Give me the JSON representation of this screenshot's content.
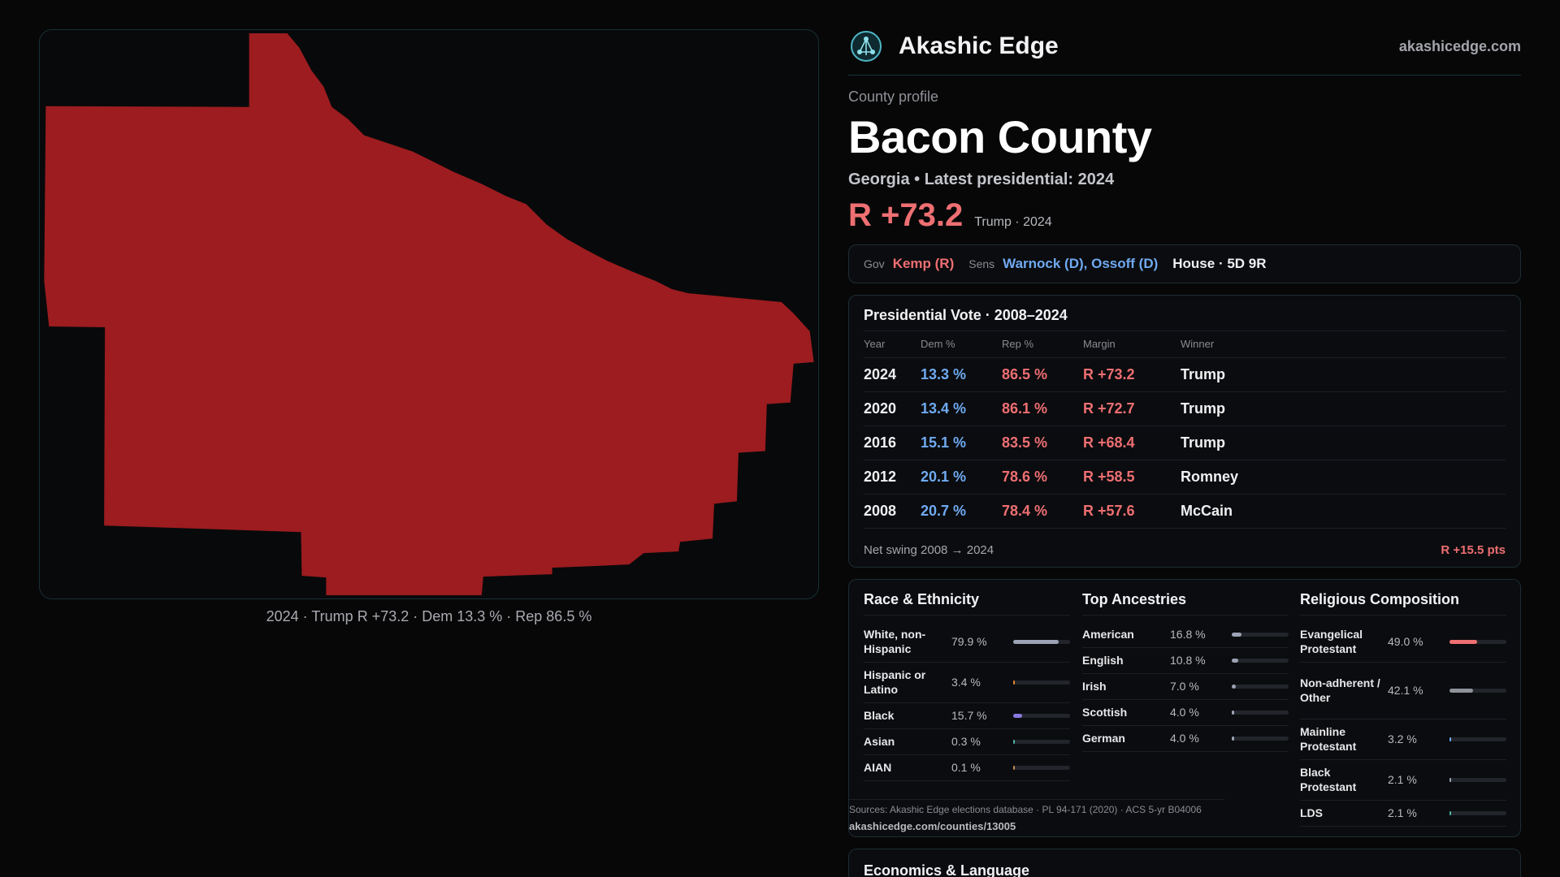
{
  "map": {
    "county_fill": "#9c1c1f",
    "caption": "2024 · Trump R +73.2 · Dem 13.3 % · Rep 86.5 %"
  },
  "brand": {
    "name": "Akashic Edge",
    "url": "akashicedge.com",
    "logo_icon": "radial-network-icon"
  },
  "header": {
    "eyebrow": "County profile",
    "county": "Bacon County",
    "subhead": "Georgia • Latest presidential: 2024",
    "margin": "R +73.2",
    "margin_sub": "Trump · 2024"
  },
  "officials": {
    "gov_label": "Gov",
    "gov": "Kemp (R)",
    "sens_label": "Sens",
    "sens": "Warnock (D), Ossoff (D)",
    "house": "House · 5D 9R"
  },
  "presidential": {
    "title": "Presidential Vote · 2008–2024",
    "columns": [
      "Year",
      "Dem %",
      "Rep %",
      "Margin",
      "Winner"
    ],
    "rows": [
      {
        "year": "2024",
        "dem": "13.3 %",
        "rep": "86.5 %",
        "margin": "R +73.2",
        "winner": "Trump"
      },
      {
        "year": "2020",
        "dem": "13.4 %",
        "rep": "86.1 %",
        "margin": "R +72.7",
        "winner": "Trump"
      },
      {
        "year": "2016",
        "dem": "15.1 %",
        "rep": "83.5 %",
        "margin": "R +68.4",
        "winner": "Trump"
      },
      {
        "year": "2012",
        "dem": "20.1 %",
        "rep": "78.6 %",
        "margin": "R +58.5",
        "winner": "Romney"
      },
      {
        "year": "2008",
        "dem": "20.7 %",
        "rep": "78.4 %",
        "margin": "R +57.6",
        "winner": "McCain"
      }
    ],
    "swing_label": "Net swing 2008 → 2024",
    "swing_value": "R +15.5 pts"
  },
  "race": {
    "title": "Race & Ethnicity",
    "items": [
      {
        "name": "White, non-Hispanic",
        "pct": "79.9 %",
        "value": 79.9,
        "color": "#9ca3b4"
      },
      {
        "name": "Hispanic or Latino",
        "pct": "3.4 %",
        "value": 3.4,
        "color": "#e2892e"
      },
      {
        "name": "Black",
        "pct": "15.7 %",
        "value": 15.7,
        "color": "#8a78e0"
      },
      {
        "name": "Asian",
        "pct": "0.3 %",
        "value": 0.3,
        "color": "#4fb3a6"
      },
      {
        "name": "AIAN",
        "pct": "0.1 %",
        "value": 0.1,
        "color": "#c78b4f"
      }
    ]
  },
  "ancestry": {
    "title": "Top Ancestries",
    "items": [
      {
        "name": "American",
        "pct": "16.8 %",
        "value": 16.8,
        "color": "#9ca3b4"
      },
      {
        "name": "English",
        "pct": "10.8 %",
        "value": 10.8,
        "color": "#9ca3b4"
      },
      {
        "name": "Irish",
        "pct": "7.0 %",
        "value": 7.0,
        "color": "#9ca3b4"
      },
      {
        "name": "Scottish",
        "pct": "4.0 %",
        "value": 4.0,
        "color": "#9ca3b4"
      },
      {
        "name": "German",
        "pct": "4.0 %",
        "value": 4.0,
        "color": "#9ca3b4"
      }
    ]
  },
  "religion": {
    "title": "Religious Composition",
    "items": [
      {
        "name": "Evangelical Protestant",
        "pct": "49.0 %",
        "value": 49.0,
        "color": "#ee6f72"
      },
      {
        "name": "Non-adherent / Other",
        "pct": "42.1 %",
        "value": 42.1,
        "color": "#8e929b"
      },
      {
        "name": "Mainline Protestant",
        "pct": "3.2 %",
        "value": 3.2,
        "color": "#6faaf1"
      },
      {
        "name": "Black Protestant",
        "pct": "2.1 %",
        "value": 2.1,
        "color": "#9ca3b4"
      },
      {
        "name": "LDS",
        "pct": "2.1 %",
        "value": 2.1,
        "color": "#4fb3a6"
      }
    ]
  },
  "sources": {
    "text": "Sources: Akashic Edge elections database · PL 94-171 (2020) · ACS 5-yr B04006",
    "url": "akashicedge.com/counties/13005"
  },
  "econ": {
    "title": "Economics & Language"
  }
}
